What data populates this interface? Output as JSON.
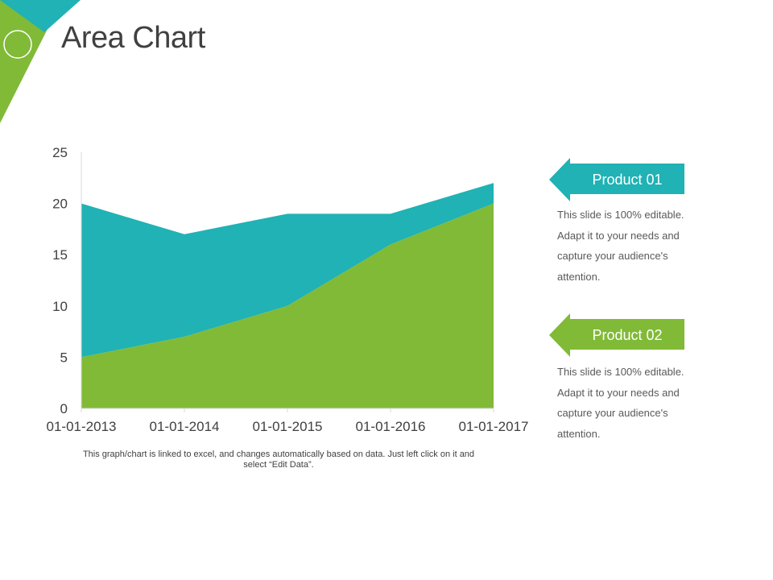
{
  "slide": {
    "title": "Area Chart",
    "footnote": "This graph/chart is linked to excel, and changes automatically based on data. Just left click on it and select “Edit Data”."
  },
  "colors": {
    "teal": "#20B2B4",
    "green": "#80BA37",
    "title": "#404040",
    "text": "#595959"
  },
  "legend": [
    {
      "label": "Product 01",
      "color": "#20B2B4",
      "description": "This slide is 100% editable. Adapt it to your needs and capture your audience's attention."
    },
    {
      "label": "Product 02",
      "color": "#80BA37",
      "description": "This slide is 100% editable. Adapt it to your needs and capture your audience's attention."
    }
  ],
  "chart_data": {
    "type": "area",
    "stacked": true,
    "categories": [
      "01-01-2013",
      "01-01-2014",
      "01-01-2015",
      "01-01-2016",
      "01-01-2017"
    ],
    "series": [
      {
        "name": "Product 02",
        "values": [
          5,
          7,
          10,
          16,
          20
        ],
        "color": "#80BA37"
      },
      {
        "name": "Product 01",
        "values": [
          15,
          10,
          9,
          3,
          2
        ],
        "color": "#20B2B4"
      }
    ],
    "y_ticks": [
      0,
      5,
      10,
      15,
      20,
      25
    ],
    "ylim": [
      0,
      25
    ],
    "grid": false,
    "legend_position": "right",
    "title": "",
    "xlabel": "",
    "ylabel": ""
  }
}
